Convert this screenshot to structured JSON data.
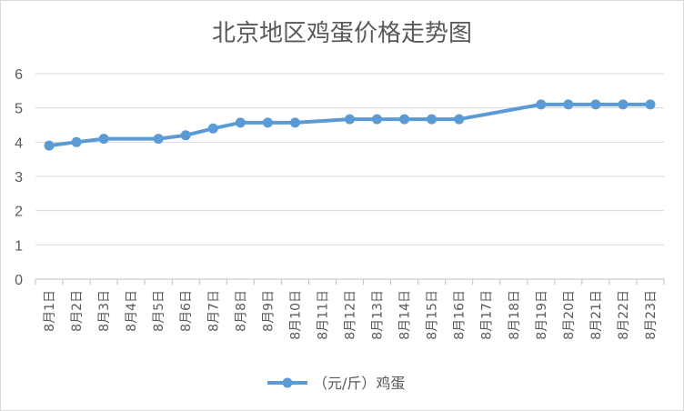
{
  "chart_data": {
    "type": "line",
    "title": "北京地区鸡蛋价格走势图",
    "xlabel": "",
    "ylabel": "",
    "ylim": [
      0,
      6
    ],
    "yticks": [
      "0",
      "1",
      "2",
      "3",
      "4",
      "5",
      "6"
    ],
    "grid": true,
    "legend_position": "bottom",
    "categories": [
      "8月1日",
      "8月2日",
      "8月3日",
      "8月4日",
      "8月5日",
      "8月6日",
      "8月7日",
      "8月8日",
      "8月9日",
      "8月10日",
      "8月11日",
      "8月12日",
      "8月13日",
      "8月14日",
      "8月15日",
      "8月16日",
      "8月17日",
      "8月18日",
      "8月19日",
      "8月20日",
      "8月21日",
      "8月22日",
      "8月23日"
    ],
    "series": [
      {
        "name": "（元/斤）鸡蛋",
        "color": "#5b9bd5",
        "values": [
          3.9,
          4.0,
          4.1,
          null,
          4.1,
          4.2,
          4.4,
          4.57,
          4.57,
          4.57,
          null,
          4.67,
          4.67,
          4.67,
          4.67,
          4.67,
          null,
          null,
          5.1,
          5.1,
          5.1,
          5.1,
          5.1
        ]
      }
    ]
  }
}
